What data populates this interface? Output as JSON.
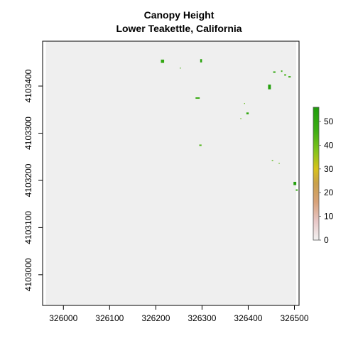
{
  "chart_data": {
    "type": "heatmap",
    "title": "Canopy Height",
    "subtitle": "Lower Teakettle, California",
    "xlabel": "",
    "ylabel": "",
    "xlim": [
      325955,
      326510
    ],
    "ylim": [
      4102935,
      4103495
    ],
    "raster_extent": {
      "x": [
        325962,
        326504
      ],
      "y": [
        4102935,
        4103495
      ]
    },
    "x_ticks": [
      326000,
      326100,
      326200,
      326300,
      326400,
      326500
    ],
    "y_ticks": [
      4103000,
      4103100,
      4103200,
      4103300,
      4103400
    ],
    "background_value": 0,
    "background_color": "#efefef",
    "grid": false,
    "legend": {
      "placement": "right",
      "range": [
        0,
        56
      ],
      "ticks": [
        0,
        10,
        20,
        30,
        40,
        50
      ],
      "color_stops": [
        {
          "value": 0,
          "color": "#f2f2f2"
        },
        {
          "value": 8,
          "color": "#e8c7c7"
        },
        {
          "value": 16,
          "color": "#d8a27a"
        },
        {
          "value": 24,
          "color": "#c9a04a"
        },
        {
          "value": 30,
          "color": "#d8c21a"
        },
        {
          "value": 38,
          "color": "#7fc31a"
        },
        {
          "value": 46,
          "color": "#3fae14"
        },
        {
          "value": 56,
          "color": "#1e9c0c"
        }
      ]
    },
    "patches": [
      {
        "x": 326211,
        "y": 4103449,
        "w": 7,
        "h": 7,
        "value": 50
      },
      {
        "x": 326252,
        "y": 4103437,
        "w": 2,
        "h": 2,
        "value": 45
      },
      {
        "x": 326296,
        "y": 4103450,
        "w": 4,
        "h": 7,
        "value": 52
      },
      {
        "x": 326286,
        "y": 4103373,
        "w": 9,
        "h": 3,
        "value": 48
      },
      {
        "x": 326294,
        "y": 4103273,
        "w": 5,
        "h": 3,
        "value": 44
      },
      {
        "x": 326383,
        "y": 4103330,
        "w": 2,
        "h": 2,
        "value": 42
      },
      {
        "x": 326391,
        "y": 4103362,
        "w": 2,
        "h": 2,
        "value": 42
      },
      {
        "x": 326396,
        "y": 4103340,
        "w": 5,
        "h": 4,
        "value": 50
      },
      {
        "x": 326443,
        "y": 4103393,
        "w": 6,
        "h": 10,
        "value": 54
      },
      {
        "x": 326454,
        "y": 4103428,
        "w": 5,
        "h": 3,
        "value": 50
      },
      {
        "x": 326471,
        "y": 4103430,
        "w": 3,
        "h": 3,
        "value": 47
      },
      {
        "x": 326478,
        "y": 4103422,
        "w": 4,
        "h": 3,
        "value": 45
      },
      {
        "x": 326487,
        "y": 4103418,
        "w": 5,
        "h": 3,
        "value": 48
      },
      {
        "x": 326451,
        "y": 4103241,
        "w": 3,
        "h": 2,
        "value": 43
      },
      {
        "x": 326466,
        "y": 4103235,
        "w": 2,
        "h": 2,
        "value": 42
      },
      {
        "x": 326498,
        "y": 4103190,
        "w": 6,
        "h": 7,
        "value": 54
      },
      {
        "x": 326503,
        "y": 4103178,
        "w": 4,
        "h": 3,
        "value": 50
      }
    ]
  }
}
